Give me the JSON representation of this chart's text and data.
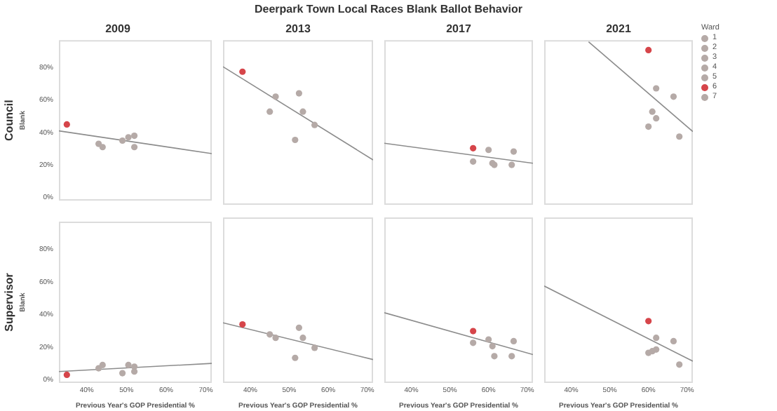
{
  "chart_data": [
    {
      "type": "other",
      "title": "Deerpark Town Local Races Blank Ballot Behavior"
    },
    {
      "type": "scatter",
      "title": "2009",
      "ylabel": "Blank",
      "annotations": [
        "Council"
      ],
      "marker": "circle",
      "tick_labels": "y",
      "xlim": [
        33,
        71.5
      ],
      "ylim": [
        -2,
        97
      ],
      "yticks": [
        {
          "value": 0,
          "label": "0%"
        },
        {
          "value": 20,
          "label": "20%"
        },
        {
          "value": 40,
          "label": "40%"
        },
        {
          "value": 60,
          "label": "60%"
        },
        {
          "value": 80,
          "label": "80%"
        }
      ],
      "series": [
        {
          "type": "scatter",
          "x": [
            43,
            44,
            49,
            50.5,
            52,
            52,
            35
          ],
          "values": [
            33,
            31,
            35,
            37,
            31,
            38,
            45
          ],
          "colors": [
            "#b5aaa7",
            "#b5aaa7",
            "#b5aaa7",
            "#b5aaa7",
            "#b5aaa7",
            "#b5aaa7",
            "#d6454a"
          ]
        },
        {
          "type": "line",
          "marker": "none",
          "x": [
            33,
            71.5
          ],
          "values": [
            41,
            27
          ],
          "color": "#8c8c8c"
        }
      ]
    },
    {
      "type": "scatter",
      "title": "2013",
      "marker": "circle",
      "tick_labels": false,
      "xlim": [
        33,
        71.5
      ],
      "ylim": [
        -2,
        97
      ],
      "series": [
        {
          "type": "scatter",
          "x": [
            45,
            46.5,
            51.5,
            52.5,
            53.5,
            56.5,
            38
          ],
          "values": [
            54,
            63,
            37,
            65,
            54,
            46,
            78
          ],
          "colors": [
            "#b5aaa7",
            "#b5aaa7",
            "#b5aaa7",
            "#b5aaa7",
            "#b5aaa7",
            "#b5aaa7",
            "#d6454a"
          ]
        },
        {
          "type": "line",
          "marker": "none",
          "x": [
            33,
            71.5
          ],
          "values": [
            81,
            25
          ],
          "color": "#8c8c8c"
        }
      ]
    },
    {
      "type": "scatter",
      "title": "2017",
      "marker": "circle",
      "tick_labels": false,
      "xlim": [
        33,
        71.5
      ],
      "ylim": [
        -2,
        97
      ],
      "series": [
        {
          "type": "scatter",
          "x": [
            56,
            60,
            61,
            61.5,
            66,
            66.5,
            56
          ],
          "values": [
            24,
            31,
            23,
            22,
            22,
            30,
            32
          ],
          "colors": [
            "#b5aaa7",
            "#b5aaa7",
            "#b5aaa7",
            "#b5aaa7",
            "#b5aaa7",
            "#b5aaa7",
            "#d6454a"
          ]
        },
        {
          "type": "line",
          "marker": "none",
          "x": [
            33,
            71.5
          ],
          "values": [
            35,
            23
          ],
          "color": "#8c8c8c"
        }
      ]
    },
    {
      "type": "scatter",
      "title": "2021",
      "marker": "circle",
      "tick_labels": false,
      "legend": "right",
      "legend_title": "Ward",
      "xlim": [
        33,
        71.5
      ],
      "ylim": [
        -2,
        97
      ],
      "series": [
        {
          "type": "scatter",
          "name": "1",
          "x": [
            60
          ],
          "values": [
            45
          ],
          "color": "#b5aaa7"
        },
        {
          "type": "scatter",
          "name": "2",
          "x": [
            61
          ],
          "values": [
            54
          ],
          "color": "#b5aaa7"
        },
        {
          "type": "scatter",
          "name": "3",
          "x": [
            62
          ],
          "values": [
            68
          ],
          "color": "#b5aaa7"
        },
        {
          "type": "scatter",
          "name": "4",
          "x": [
            62
          ],
          "values": [
            50
          ],
          "color": "#b5aaa7"
        },
        {
          "type": "scatter",
          "name": "5",
          "x": [
            66.5
          ],
          "values": [
            63
          ],
          "color": "#b5aaa7"
        },
        {
          "type": "scatter",
          "name": "6",
          "x": [
            60
          ],
          "values": [
            91
          ],
          "color": "#d6454a"
        },
        {
          "type": "scatter",
          "name": "7",
          "x": [
            68
          ],
          "values": [
            39
          ],
          "color": "#b5aaa7"
        },
        {
          "type": "line",
          "marker": "none",
          "x": [
            44.5,
            71.5
          ],
          "values": [
            96,
            42
          ],
          "color": "#8c8c8c"
        }
      ]
    },
    {
      "type": "scatter",
      "ylabel": "Blank",
      "xlabel": "Previous Year's GOP Presidential %",
      "annotations": [
        "Supervisor"
      ],
      "marker": "circle",
      "xlim": [
        33,
        71.5
      ],
      "ylim": [
        -2,
        97
      ],
      "xticks": [
        {
          "value": 40,
          "label": "40%"
        },
        {
          "value": 50,
          "label": "50%"
        },
        {
          "value": 60,
          "label": "60%"
        },
        {
          "value": 70,
          "label": "70%"
        }
      ],
      "yticks": [
        {
          "value": 0,
          "label": "0%"
        },
        {
          "value": 20,
          "label": "20%"
        },
        {
          "value": 40,
          "label": "40%"
        },
        {
          "value": 60,
          "label": "60%"
        },
        {
          "value": 80,
          "label": "80%"
        }
      ],
      "series": [
        {
          "type": "scatter",
          "x": [
            43,
            44,
            49,
            50.5,
            52,
            52,
            35
          ],
          "values": [
            7,
            9,
            4,
            9,
            8,
            5,
            3
          ],
          "colors": [
            "#b5aaa7",
            "#b5aaa7",
            "#b5aaa7",
            "#b5aaa7",
            "#b5aaa7",
            "#b5aaa7",
            "#d6454a"
          ]
        },
        {
          "type": "line",
          "marker": "none",
          "x": [
            33,
            71.5
          ],
          "values": [
            5,
            10
          ],
          "color": "#8c8c8c"
        }
      ]
    },
    {
      "type": "scatter",
      "xlabel": "Previous Year's GOP Presidential %",
      "marker": "circle",
      "tick_labels": "x",
      "xlim": [
        33,
        71.5
      ],
      "ylim": [
        -2,
        97
      ],
      "xticks": [
        {
          "value": 40,
          "label": "40%"
        },
        {
          "value": 50,
          "label": "50%"
        },
        {
          "value": 60,
          "label": "60%"
        },
        {
          "value": 70,
          "label": "70%"
        }
      ],
      "series": [
        {
          "type": "scatter",
          "x": [
            45,
            46.5,
            51.5,
            52.5,
            53.5,
            56.5,
            38
          ],
          "values": [
            27,
            25,
            13,
            31,
            25,
            19,
            33
          ],
          "colors": [
            "#b5aaa7",
            "#b5aaa7",
            "#b5aaa7",
            "#b5aaa7",
            "#b5aaa7",
            "#b5aaa7",
            "#d6454a"
          ]
        },
        {
          "type": "line",
          "marker": "none",
          "x": [
            33,
            71.5
          ],
          "values": [
            34,
            12
          ],
          "color": "#8c8c8c"
        }
      ]
    },
    {
      "type": "scatter",
      "xlabel": "Previous Year's GOP Presidential %",
      "marker": "circle",
      "tick_labels": "x",
      "xlim": [
        33,
        71.5
      ],
      "ylim": [
        -2,
        97
      ],
      "xticks": [
        {
          "value": 40,
          "label": "40%"
        },
        {
          "value": 50,
          "label": "50%"
        },
        {
          "value": 60,
          "label": "60%"
        },
        {
          "value": 70,
          "label": "70%"
        }
      ],
      "series": [
        {
          "type": "scatter",
          "x": [
            56,
            60,
            61,
            61.5,
            66,
            66.5,
            56
          ],
          "values": [
            22,
            24,
            20,
            14,
            14,
            23,
            29
          ],
          "colors": [
            "#b5aaa7",
            "#b5aaa7",
            "#b5aaa7",
            "#b5aaa7",
            "#b5aaa7",
            "#b5aaa7",
            "#d6454a"
          ]
        },
        {
          "type": "line",
          "marker": "none",
          "x": [
            33,
            71.5
          ],
          "values": [
            40,
            15
          ],
          "color": "#8c8c8c"
        }
      ]
    },
    {
      "type": "scatter",
      "xlabel": "Previous Year's GOP Presidential %",
      "marker": "circle",
      "tick_labels": "x",
      "xlim": [
        33,
        71.5
      ],
      "ylim": [
        -2,
        97
      ],
      "xticks": [
        {
          "value": 40,
          "label": "40%"
        },
        {
          "value": 50,
          "label": "50%"
        },
        {
          "value": 60,
          "label": "60%"
        },
        {
          "value": 70,
          "label": "70%"
        }
      ],
      "series": [
        {
          "type": "scatter",
          "x": [
            60,
            61,
            62,
            62,
            66.5,
            68,
            60
          ],
          "values": [
            16,
            17,
            25,
            18,
            23,
            9,
            35
          ],
          "colors": [
            "#b5aaa7",
            "#b5aaa7",
            "#b5aaa7",
            "#b5aaa7",
            "#b5aaa7",
            "#b5aaa7",
            "#d6454a"
          ]
        },
        {
          "type": "line",
          "marker": "none",
          "x": [
            33,
            71.5
          ],
          "values": [
            56,
            11
          ],
          "color": "#8c8c8c"
        }
      ]
    }
  ]
}
